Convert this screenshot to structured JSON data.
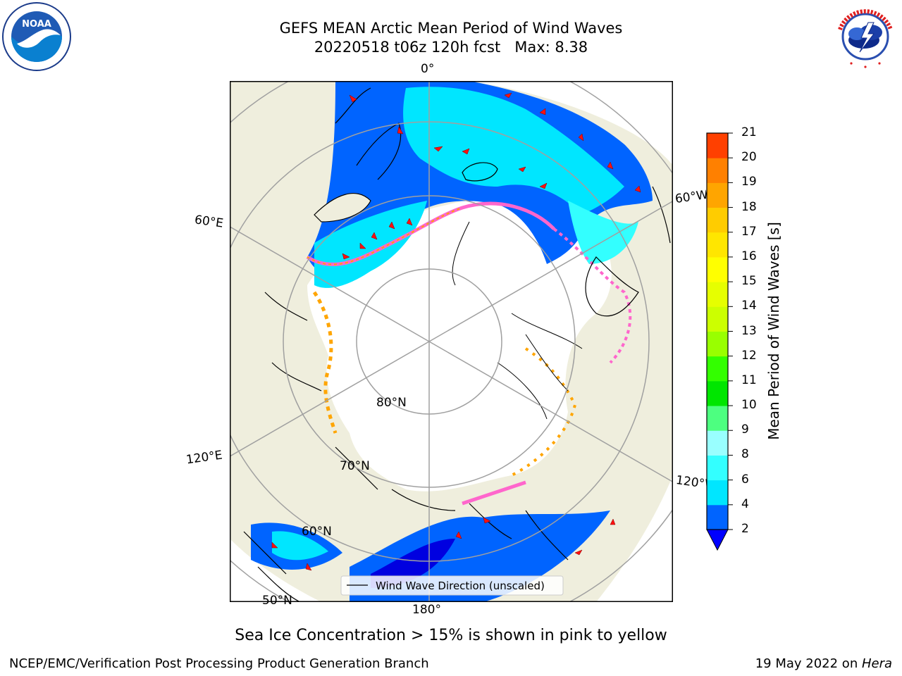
{
  "header": {
    "title_line1": "GEFS MEAN Arctic Mean Period of Wind Waves",
    "title_line2": "20220518 t06z 120h fcst   Max: 8.38"
  },
  "logos": {
    "left": {
      "name": "noaa-logo",
      "text": "NOAA",
      "ring_text": "NATIONAL OCEANIC AND ATMOSPHERIC ADMINISTRATION · U.S. DEPARTMENT OF COMMERCE"
    },
    "right": {
      "name": "nws-logo",
      "ring_text": "NATIONAL WEATHER SERVICE"
    }
  },
  "map": {
    "projection": "north-polar-stereographic",
    "land_color": "#efeedd",
    "ice_color": "#ffffff",
    "legend_label": "Wind Wave Direction (unscaled)",
    "grid_labels": {
      "lon_0": "0°",
      "lon_180": "180°",
      "lon_60e": "60°E",
      "lon_120e": "120°E",
      "lon_60w": "60°W",
      "lon_120w": "120°W",
      "lat_80": "80°N",
      "lat_70": "70°N",
      "lat_60": "60°N",
      "lat_50": "50°N"
    }
  },
  "colorbar": {
    "label": "Mean Period of Wind Waves [s]",
    "ticks": [
      "2",
      "4",
      "6",
      "8",
      "9",
      "10",
      "11",
      "12",
      "13",
      "14",
      "15",
      "16",
      "17",
      "18",
      "19",
      "20",
      "21"
    ],
    "colors": [
      "#0064ff",
      "#00e6ff",
      "#33ffff",
      "#99ffff",
      "#4dff80",
      "#00e600",
      "#33ff00",
      "#99ff00",
      "#ccff00",
      "#e6ff00",
      "#ffff00",
      "#ffe600",
      "#ffcc00",
      "#ffa500",
      "#ff8000",
      "#ff4000",
      "#ff0000"
    ],
    "extend_color": "#0000ff"
  },
  "footer": {
    "note": "Sea Ice Concentration > 15% is shown in pink to yellow",
    "credit": "NCEP/EMC/Verification Post Processing Product Generation Branch",
    "date_prefix": "19 May 2022 on ",
    "date_host": "Hera"
  }
}
